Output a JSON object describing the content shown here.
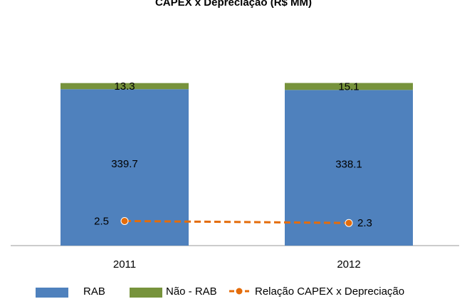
{
  "chart_data": {
    "type": "bar",
    "title": "CAPEX x Depreciação (R$ MM)",
    "categories": [
      "2011",
      "2012"
    ],
    "series": [
      {
        "name": "RAB",
        "color": "#4f81bd",
        "values": [
          339.7,
          338.1
        ]
      },
      {
        "name": "Não - RAB",
        "color": "#77933c",
        "values": [
          13.3,
          15.1
        ]
      },
      {
        "name": "Relação CAPEX x Depreciação",
        "color": "#e46c0a",
        "type": "line",
        "axis": "y2",
        "values": [
          2.5,
          2.3
        ]
      }
    ],
    "stacked": true,
    "ylim": [
      0,
      470
    ],
    "y2lim": [
      0,
      22
    ],
    "legend": "bottom"
  }
}
